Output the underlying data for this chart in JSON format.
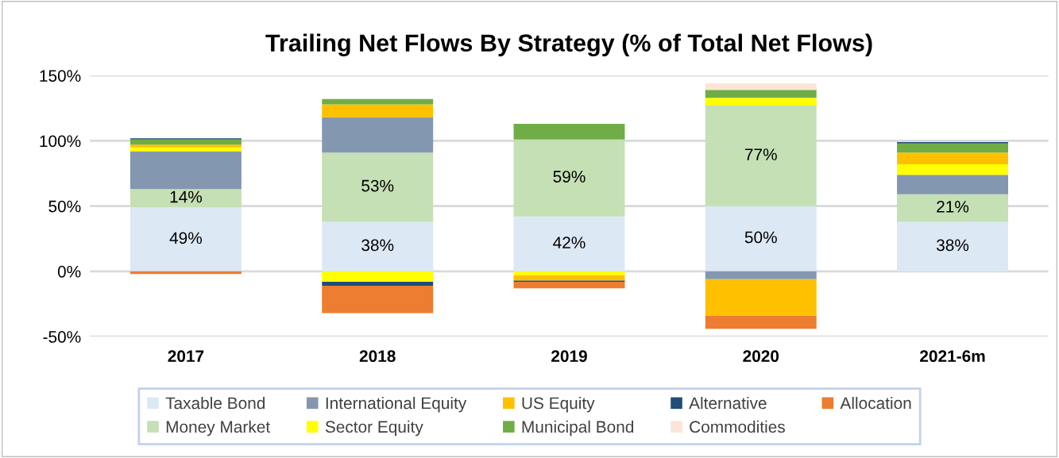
{
  "chart_data": {
    "type": "bar",
    "title": "Trailing Net Flows By Strategy (% of Total Net Flows)",
    "categories": [
      "2017",
      "2018",
      "2019",
      "2020",
      "2021-6m"
    ],
    "stacked": true,
    "series": [
      {
        "name": "Taxable Bond",
        "color": "#dde8f5",
        "values": [
          49,
          38,
          42,
          50,
          38
        ],
        "value_labels": [
          "49%",
          "38%",
          "42%",
          "50%",
          "38%"
        ]
      },
      {
        "name": "Money Market",
        "color": "#c5e0b4",
        "values": [
          14,
          53,
          59,
          77,
          21
        ],
        "value_labels": [
          "14%",
          "53%",
          "59%",
          "77%",
          "21%"
        ]
      },
      {
        "name": "International Equity",
        "color": "#8497b0",
        "values": [
          29,
          27,
          null,
          -6,
          15
        ]
      },
      {
        "name": "Sector Equity",
        "color": "#ffff00",
        "values": [
          3,
          -8,
          -3,
          6,
          8
        ]
      },
      {
        "name": "US Equity",
        "color": "#ffc000",
        "values": [
          2,
          10,
          -4,
          -28,
          9
        ]
      },
      {
        "name": "Municipal Bond",
        "color": "#70ad47",
        "values": [
          4,
          4,
          12,
          6,
          7
        ]
      },
      {
        "name": "Alternative",
        "color": "#1f4e79",
        "values": [
          1,
          -3,
          -1,
          null,
          1
        ]
      },
      {
        "name": "Commodities",
        "color": "#fbe5d6",
        "values": [
          null,
          null,
          null,
          5,
          null
        ]
      },
      {
        "name": "Allocation",
        "color": "#ed7d31",
        "values": [
          -2,
          -21,
          -5,
          -10,
          null
        ]
      }
    ],
    "ylim": [
      -50,
      150
    ],
    "yticks": [
      {
        "value": -50,
        "label": "-50%"
      },
      {
        "value": 0,
        "label": "0%"
      },
      {
        "value": 50,
        "label": "50%"
      },
      {
        "value": 100,
        "label": "100%"
      },
      {
        "value": 150,
        "label": "150%"
      }
    ],
    "grid": "y",
    "legend": "bottom"
  }
}
